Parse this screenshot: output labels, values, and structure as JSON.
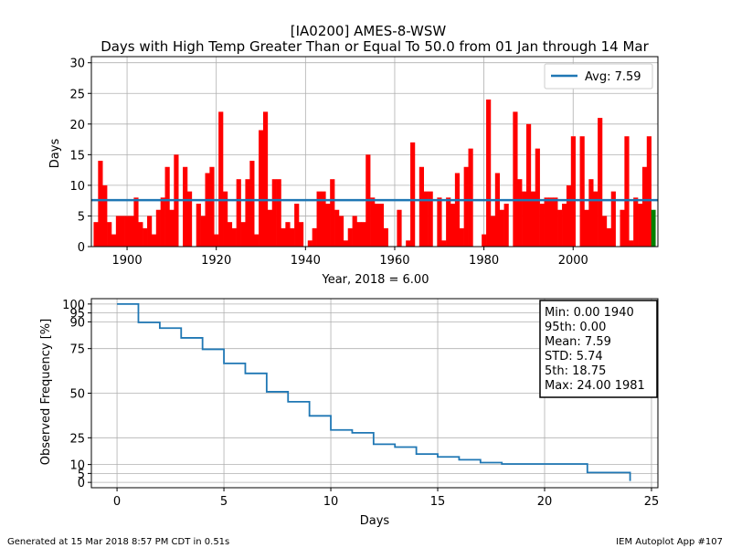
{
  "title_line1": "[IA0200] AMES-8-WSW",
  "title_line2": "Days with High Temp Greater Than or Equal To 50.0 from 01 Jan through 14 Mar",
  "footer_left": "Generated at 15 Mar 2018 8:57 PM CDT in 0.51s",
  "footer_right": "IEM Autoplot App #107",
  "colors": {
    "bar": "#ff0000",
    "bar_current": "#008000",
    "line": "#1f77b4",
    "grid": "#b0b0b0"
  },
  "chart_data": [
    {
      "type": "bar",
      "xlabel": "Year, 2018 = 6.00",
      "ylabel": "Days",
      "xlim": [
        1892,
        2019
      ],
      "ylim": [
        0,
        31
      ],
      "xticks": [
        1900,
        1920,
        1940,
        1960,
        1980,
        2000
      ],
      "yticks": [
        0,
        5,
        10,
        15,
        20,
        25,
        30
      ],
      "grid": true,
      "legend": {
        "position": "top-right",
        "label": "Avg: 7.59"
      },
      "average": 7.59,
      "current": {
        "year": 2018,
        "value": 6
      },
      "series": [
        {
          "years": [
            1893,
            1894,
            1895,
            1896,
            1897,
            1898,
            1899,
            1900,
            1901,
            1902,
            1903,
            1904,
            1905,
            1906,
            1907,
            1908,
            1909,
            1910,
            1911,
            1912,
            1913,
            1914,
            1915,
            1916,
            1917,
            1918,
            1919,
            1920,
            1921,
            1922,
            1923,
            1924,
            1925,
            1926,
            1927,
            1928,
            1929,
            1930,
            1931,
            1932,
            1933,
            1934,
            1935,
            1936,
            1937,
            1938,
            1939,
            1940,
            1941,
            1942,
            1943,
            1944,
            1945,
            1946,
            1947,
            1948,
            1949,
            1950,
            1951,
            1952,
            1953,
            1954,
            1955,
            1956,
            1957,
            1958,
            1959,
            1960,
            1961,
            1962,
            1963,
            1964,
            1965,
            1966,
            1967,
            1968,
            1969,
            1970,
            1971,
            1972,
            1973,
            1974,
            1975,
            1976,
            1977,
            1978,
            1979,
            1980,
            1981,
            1982,
            1983,
            1984,
            1985,
            1986,
            1987,
            1988,
            1989,
            1990,
            1991,
            1992,
            1993,
            1994,
            1995,
            1996,
            1997,
            1998,
            1999,
            2000,
            2001,
            2002,
            2003,
            2004,
            2005,
            2006,
            2007,
            2008,
            2009,
            2010,
            2011,
            2012,
            2013,
            2014,
            2015,
            2016,
            2017
          ],
          "values": [
            4,
            14,
            10,
            4,
            2,
            5,
            5,
            5,
            5,
            8,
            4,
            3,
            5,
            2,
            6,
            8,
            13,
            6,
            15,
            0,
            13,
            9,
            0,
            7,
            5,
            12,
            13,
            2,
            22,
            9,
            4,
            3,
            11,
            4,
            11,
            14,
            2,
            19,
            22,
            6,
            11,
            11,
            3,
            4,
            3,
            7,
            4,
            0,
            1,
            3,
            9,
            9,
            7,
            11,
            6,
            5,
            1,
            3,
            5,
            4,
            4,
            15,
            8,
            7,
            7,
            3,
            0,
            0,
            6,
            0,
            1,
            17,
            0,
            13,
            9,
            9,
            0,
            8,
            1,
            8,
            7,
            12,
            3,
            13,
            16,
            0,
            0,
            2,
            24,
            5,
            12,
            6,
            7,
            0,
            22,
            11,
            9,
            20,
            9,
            16,
            7,
            8,
            8,
            8,
            6,
            7,
            10,
            18,
            0,
            18,
            6,
            11,
            9,
            21,
            5,
            3,
            9,
            0,
            6,
            18,
            1,
            8,
            7,
            13,
            18
          ]
        }
      ]
    },
    {
      "type": "line",
      "xlabel": "Days",
      "ylabel": "Observed Frequency [%]",
      "xlim": [
        -1.2,
        25.3
      ],
      "ylim": [
        -3,
        103
      ],
      "xticks": [
        0,
        5,
        10,
        15,
        20,
        25
      ],
      "yticks": [
        0,
        5,
        10,
        25,
        50,
        75,
        90,
        95,
        100
      ],
      "grid": true,
      "series": [
        {
          "x": [
            0,
            1,
            2,
            3,
            4,
            5,
            6,
            7,
            8,
            9,
            10,
            11,
            12,
            13,
            14,
            15,
            16,
            17,
            18,
            22,
            24
          ],
          "y": [
            100,
            89.7,
            86.5,
            81.0,
            74.6,
            66.7,
            61.1,
            50.8,
            45.2,
            37.3,
            29.4,
            27.8,
            21.4,
            19.8,
            15.9,
            14.3,
            12.7,
            11.1,
            10.3,
            5.5,
            0.8
          ]
        }
      ],
      "stats": {
        "min": "Min: 0.00 1940",
        "p95": "95th: 0.00",
        "mean": "Mean: 7.59",
        "std": "STD: 5.74",
        "p5": "5th: 18.75",
        "max": "Max: 24.00 1981"
      }
    }
  ]
}
